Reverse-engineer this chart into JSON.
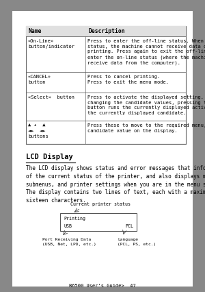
{
  "bg_color": "#ffffff",
  "page_bg": "#888888",
  "table": {
    "header": [
      "Name",
      "Description"
    ],
    "rows": [
      {
        "name": "«On-Line»\nbutton/indicator",
        "desc": "Press to enter the off-line status. When in the off-line\nstatus, the machine cannot receive data or process\nprinting. Press again to exit the off-line status and\nenter the on-line status (where the machine can\nreceive data from the computer)."
      },
      {
        "name": "«CANCEL»\nbutton",
        "desc": "Press to cancel printing.\nPress to exit the menu mode."
      },
      {
        "name": "«Select»  button",
        "desc": "Press to activate the displayed setting. When you are\nchanging the candidate values, pressing the Select\nbutton runs the currently displayed activity or saves\nthe currently displayed candidate."
      },
      {
        "name": "▲ ▴  ▲\n◄►  ◄►\nbuttons",
        "desc": "Press these to move to the required menu, item and\ncandidate value on the display."
      }
    ]
  },
  "section_title": "LCD Display",
  "body_text": "The LCD display shows status and error messages that inform you\nof the current status of the printer, and also displays menus,\nsubmenus, and printer settings when you are in the menu system.\nThe display contains two lines of text, each with a maximum of\nsixteen characters.",
  "diagram": {
    "line1": "Printing",
    "line2": "USB",
    "line2r": "PCL",
    "label_status": "Current printer status",
    "label_port": "Port Receiving Data\n(USB, Net, LPD, etc.)",
    "label_lang": "Language\n(PCL, PS, etc.)"
  },
  "footer": "B6500 User’s Guide>  47"
}
